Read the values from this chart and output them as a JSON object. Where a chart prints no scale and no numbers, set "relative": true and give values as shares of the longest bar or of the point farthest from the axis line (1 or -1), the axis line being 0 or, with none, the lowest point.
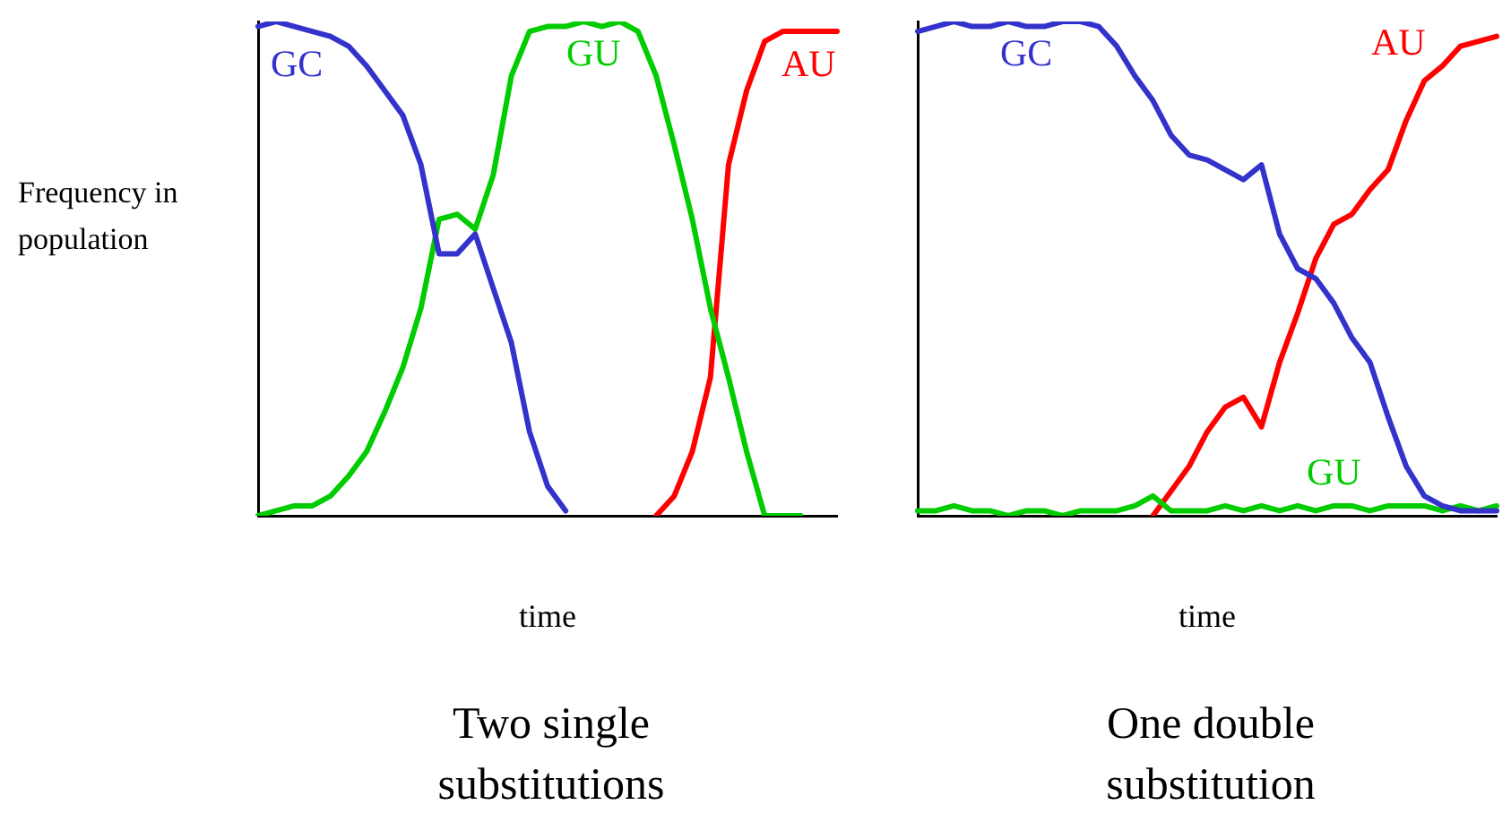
{
  "chart_data": [
    {
      "type": "line",
      "relative": true,
      "title": "Two single substitutions",
      "xlabel": "time",
      "ylabel": "Frequency in population",
      "grid": false,
      "categories": [
        null,
        null,
        null,
        null,
        null,
        null,
        null,
        null,
        null,
        null,
        null,
        null,
        null,
        null,
        null,
        null,
        null,
        null,
        null,
        null,
        null,
        null,
        null,
        null,
        null,
        null,
        null,
        null,
        null,
        null,
        null,
        null,
        null
      ],
      "series": [
        {
          "name": "GC",
          "color": "#3333cc",
          "values": [
            0.99,
            1.0,
            0.99,
            0.98,
            0.97,
            0.95,
            0.91,
            0.86,
            0.81,
            0.71,
            0.53,
            0.53,
            0.57,
            0.46,
            0.35,
            0.17,
            0.06,
            0.01,
            null,
            null,
            null,
            null,
            null,
            null,
            null,
            null,
            null,
            null,
            null,
            null,
            null,
            null,
            null
          ]
        },
        {
          "name": "GU",
          "color": "#00cc00",
          "values": [
            0,
            0.01,
            0.02,
            0.02,
            0.04,
            0.08,
            0.13,
            0.21,
            0.3,
            0.42,
            0.6,
            0.61,
            0.58,
            0.69,
            0.89,
            0.98,
            0.99,
            0.99,
            1.0,
            0.99,
            1.0,
            0.98,
            0.89,
            0.75,
            0.6,
            0.42,
            0.28,
            0.13,
            0,
            0,
            0,
            null,
            null
          ]
        },
        {
          "name": "AU",
          "color": "#ff0000",
          "values": [
            null,
            null,
            null,
            null,
            null,
            null,
            null,
            null,
            null,
            null,
            null,
            null,
            null,
            null,
            null,
            null,
            null,
            null,
            null,
            null,
            null,
            null,
            0,
            0.04,
            0.13,
            0.28,
            0.71,
            0.86,
            0.96,
            0.98,
            0.98,
            0.98,
            0.98
          ]
        }
      ]
    },
    {
      "type": "line",
      "relative": true,
      "title": "One double substitution",
      "xlabel": "time",
      "grid": false,
      "categories": [
        null,
        null,
        null,
        null,
        null,
        null,
        null,
        null,
        null,
        null,
        null,
        null,
        null,
        null,
        null,
        null,
        null,
        null,
        null,
        null,
        null,
        null,
        null,
        null,
        null,
        null,
        null,
        null,
        null,
        null,
        null,
        null,
        null
      ],
      "series": [
        {
          "name": "GC",
          "color": "#3333cc",
          "values": [
            0.98,
            0.99,
            1.0,
            0.99,
            0.99,
            1.0,
            0.99,
            0.99,
            1.0,
            1.0,
            0.99,
            0.95,
            0.89,
            0.84,
            0.77,
            0.73,
            0.72,
            0.7,
            0.68,
            0.71,
            0.57,
            0.5,
            0.48,
            0.43,
            0.36,
            0.31,
            0.2,
            0.1,
            0.04,
            0.02,
            0.01,
            0.01,
            0.01
          ]
        },
        {
          "name": "GU",
          "color": "#00cc00",
          "values": [
            0.01,
            0.01,
            0.02,
            0.01,
            0.01,
            0.0,
            0.01,
            0.01,
            0.0,
            0.01,
            0.01,
            0.01,
            0.02,
            0.04,
            0.01,
            0.01,
            0.01,
            0.02,
            0.01,
            0.02,
            0.01,
            0.02,
            0.01,
            0.02,
            0.02,
            0.01,
            0.02,
            0.02,
            0.02,
            0.01,
            0.02,
            0.01,
            0.02
          ]
        },
        {
          "name": "AU",
          "color": "#ff0000",
          "values": [
            null,
            null,
            null,
            null,
            null,
            null,
            null,
            null,
            null,
            null,
            null,
            null,
            null,
            0,
            0.05,
            0.1,
            0.17,
            0.22,
            0.24,
            0.18,
            0.31,
            0.41,
            0.52,
            0.59,
            0.61,
            0.66,
            0.7,
            0.8,
            0.88,
            0.91,
            0.95,
            0.96,
            0.97
          ]
        }
      ]
    }
  ]
}
